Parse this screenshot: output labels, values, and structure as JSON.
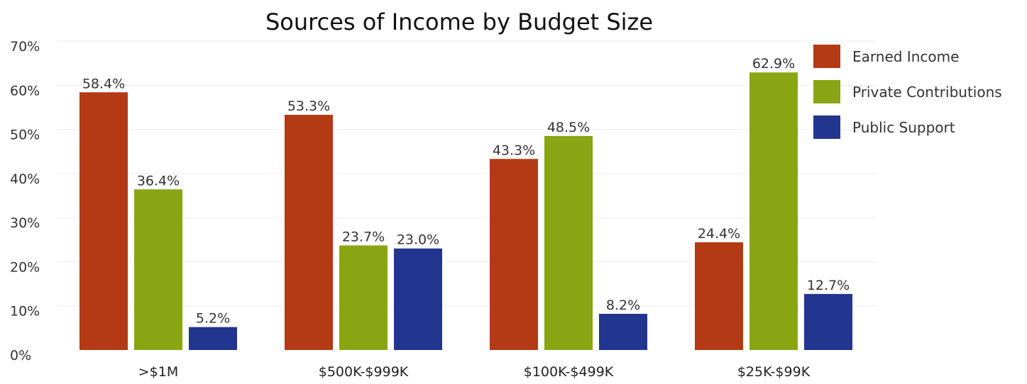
{
  "chart_data": {
    "type": "bar",
    "title": "Sources of Income by Budget Size",
    "xlabel": "",
    "ylabel": "",
    "categories": [
      ">$1M",
      "$500K-$999K",
      "$100K-$499K",
      "$25K-$99K"
    ],
    "series": [
      {
        "name": "Earned Income",
        "color": "#b33a14",
        "values": [
          58.4,
          53.3,
          43.3,
          24.4
        ],
        "labels": [
          "58.4%",
          "53.3%",
          "43.3%",
          "24.4%"
        ]
      },
      {
        "name": "Private Contributions",
        "color": "#8aa514",
        "values": [
          36.4,
          23.7,
          48.5,
          62.9
        ],
        "labels": [
          "36.4%",
          "23.7%",
          "48.5%",
          "62.9%"
        ]
      },
      {
        "name": "Public Support",
        "color": "#22358f",
        "values": [
          5.2,
          23.0,
          8.2,
          12.7
        ],
        "labels": [
          "5.2%",
          "23.0%",
          "8.2%",
          "12.7%"
        ]
      }
    ],
    "ylim": [
      0,
      70
    ],
    "yticks": [
      0,
      10,
      20,
      30,
      40,
      50,
      60,
      70
    ],
    "ytick_labels": [
      "0%",
      "10%",
      "20%",
      "30%",
      "40%",
      "50%",
      "60%",
      "70%"
    ],
    "grid": true,
    "legend_position": "top-right"
  }
}
